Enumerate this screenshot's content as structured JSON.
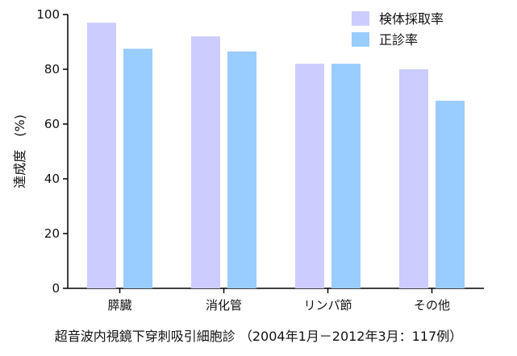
{
  "chart_data": {
    "type": "bar",
    "categories": [
      "膵臓",
      "消化管",
      "リンパ節",
      "その他"
    ],
    "series": [
      {
        "name": "検体採取率",
        "values": [
          97,
          92,
          82,
          80
        ],
        "color": "#ccccff"
      },
      {
        "name": "正診率",
        "values": [
          87.5,
          86.5,
          82,
          68.5
        ],
        "color": "#99ccff"
      }
    ],
    "ylabel": "達成度　(%)",
    "xlabel": "超音波内視鏡下穿刺吸引細胞診 （2004年1月－2012年3月：117例）",
    "ylim": [
      0,
      100
    ],
    "yticks": [
      0,
      20,
      40,
      60,
      80,
      100
    ],
    "grid": false,
    "legend": "top-right"
  }
}
